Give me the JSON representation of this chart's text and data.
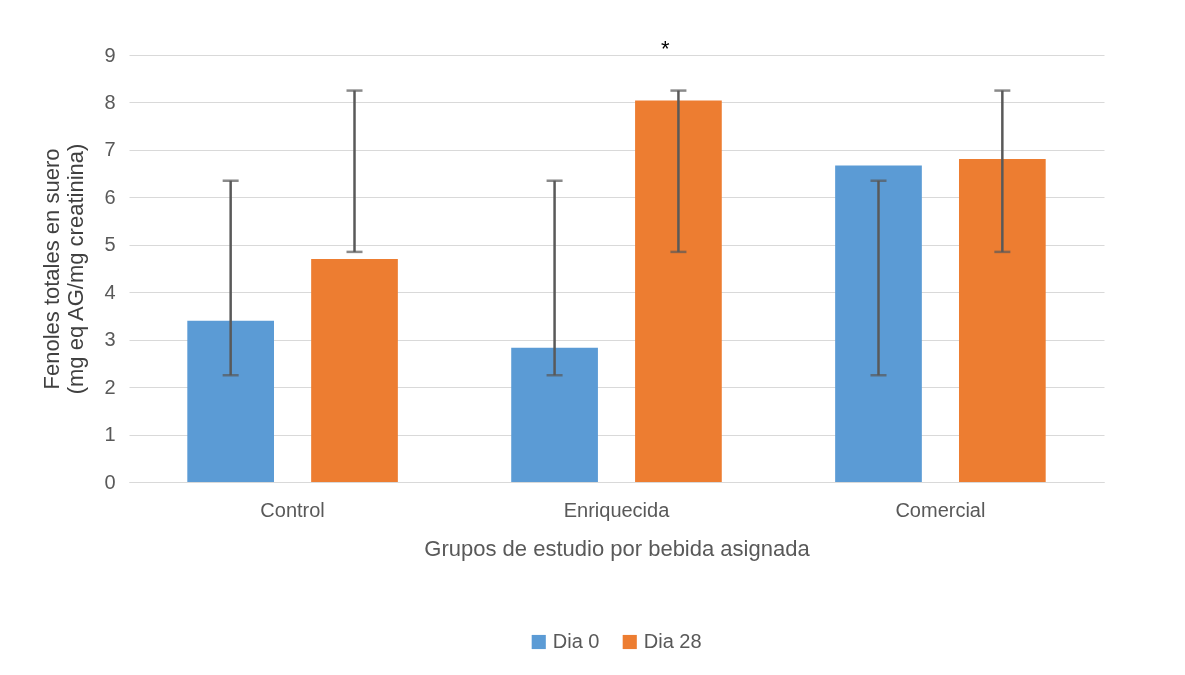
{
  "chart_data": {
    "type": "bar",
    "xlabel": "Grupos de estudio por bebida asignada",
    "ylabel": "Fenoles totales en suero\n(mg eq AG/mg creatinina)",
    "categories": [
      "Control",
      "Enriquecida",
      "Comercial"
    ],
    "series": [
      {
        "name": "Dia 0",
        "color": "#5b9bd5",
        "values": [
          3.4,
          2.83,
          6.67
        ],
        "errors": [
          [
            2.25,
            6.35
          ],
          [
            2.25,
            6.35
          ],
          [
            2.25,
            6.35
          ]
        ]
      },
      {
        "name": "Dia 28",
        "color": "#ed7d31",
        "values": [
          4.7,
          8.04,
          6.81
        ],
        "errors": [
          [
            4.85,
            8.25
          ],
          [
            4.85,
            8.25
          ],
          [
            4.85,
            8.25
          ]
        ]
      }
    ],
    "annotations": [
      "*"
    ],
    "ylim": [
      0,
      9
    ],
    "yticks": [
      0,
      1,
      2,
      3,
      4,
      5,
      6,
      7,
      8,
      9
    ],
    "grid": "y",
    "legend": "bottom"
  }
}
